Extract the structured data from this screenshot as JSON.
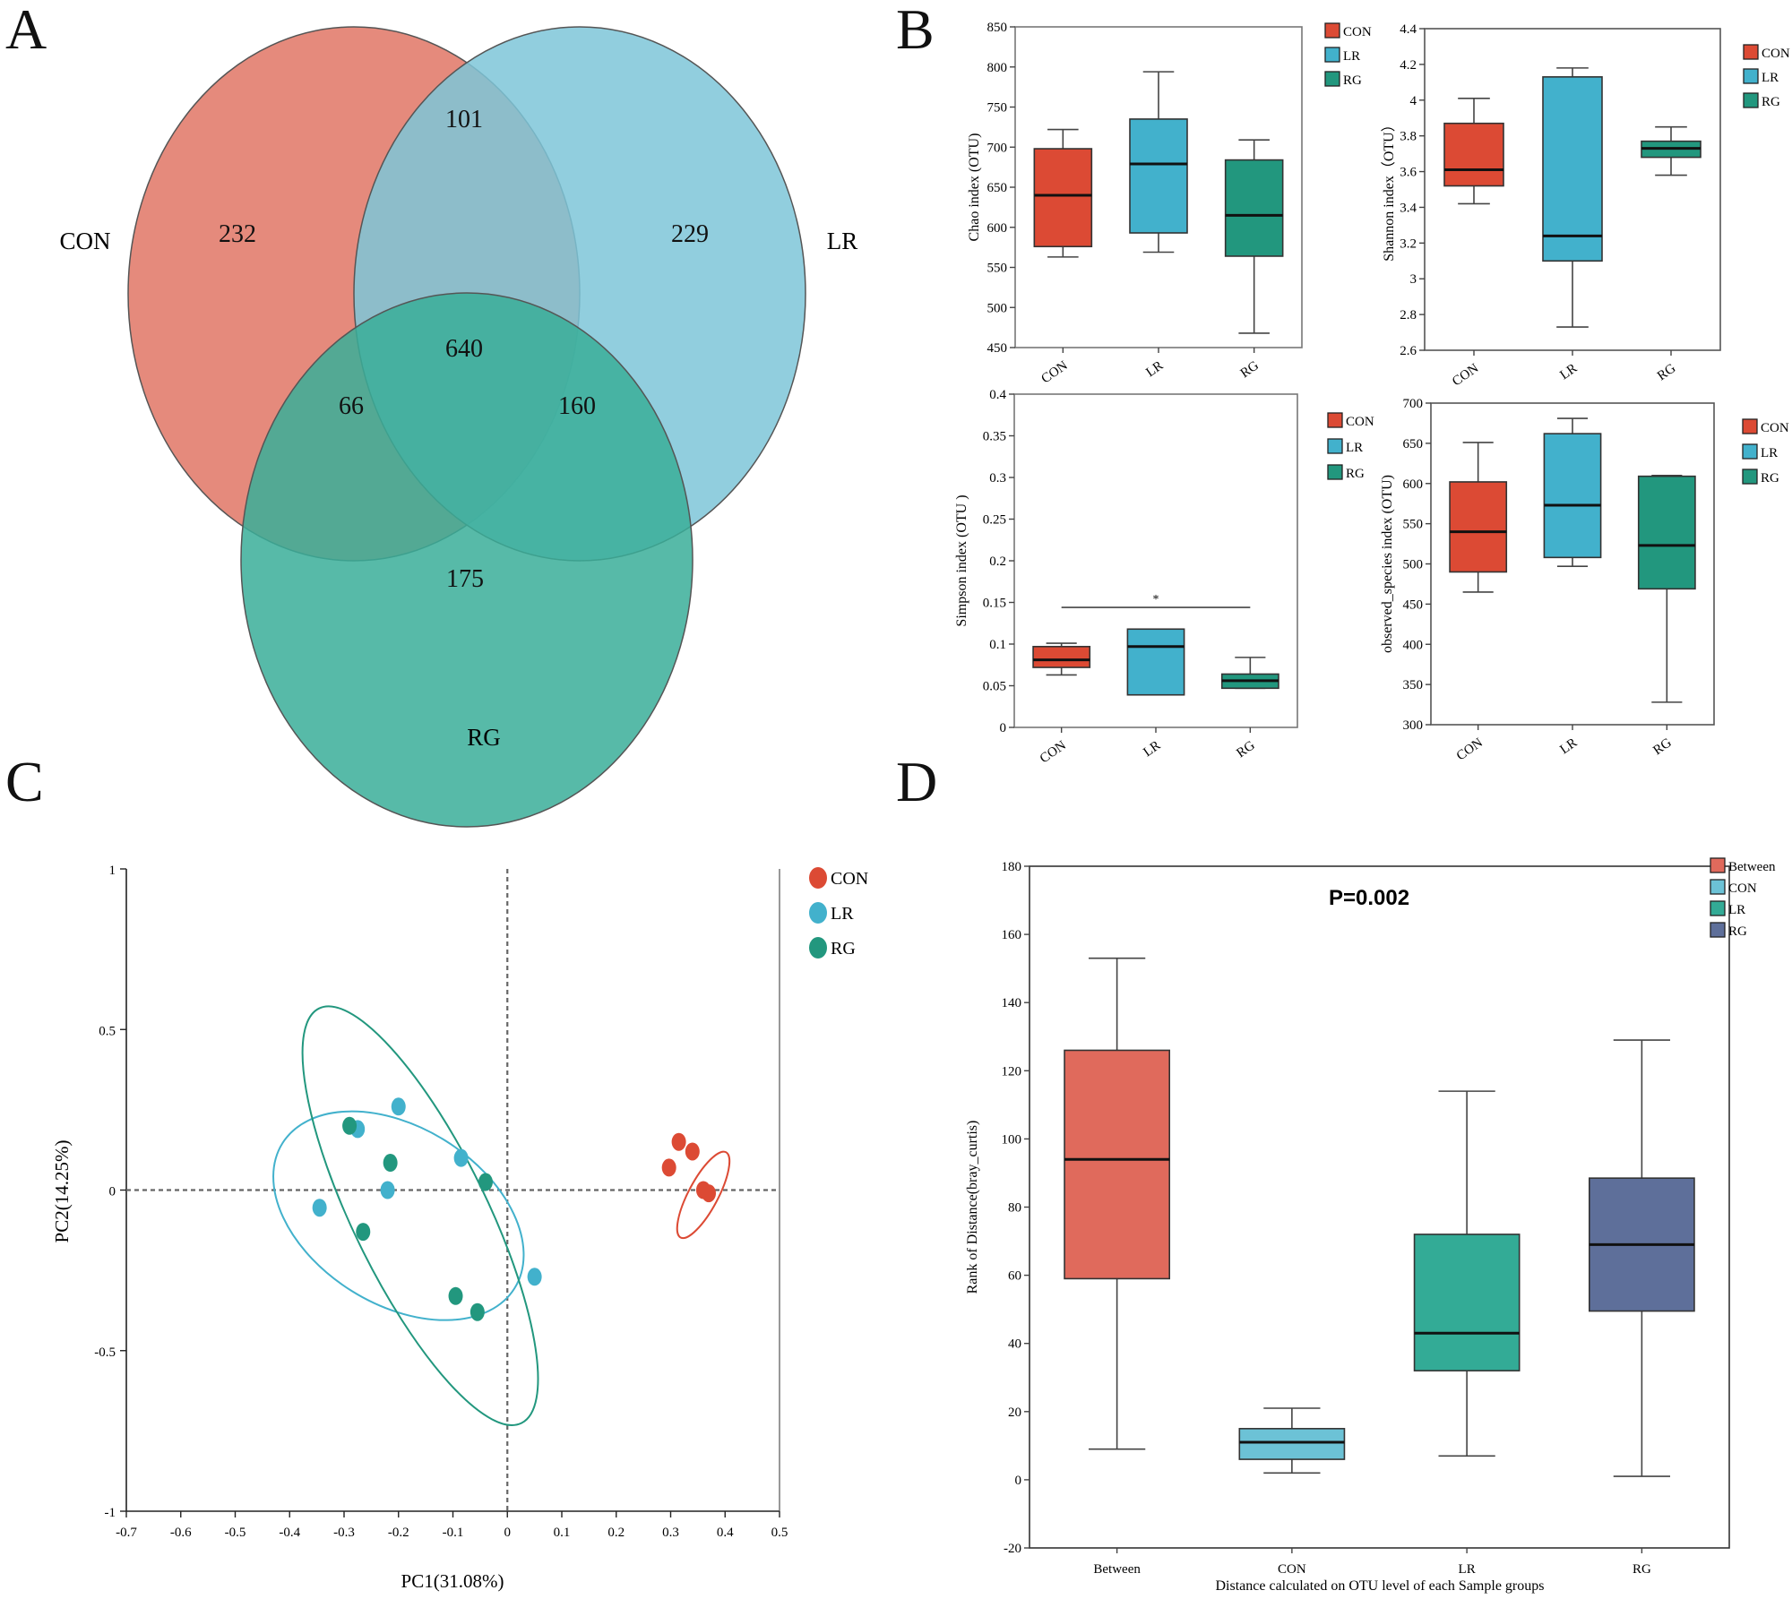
{
  "panels": {
    "A": "A",
    "B": "B",
    "C": "C",
    "D": "D"
  },
  "colors": {
    "CON": "#e07565",
    "LR": "#7ec6d8",
    "RG": "#3aae99",
    "box_CON": "#dc4a34",
    "box_LR": "#42b1cc",
    "box_RG": "#22977e",
    "D_Between": "#e06a5c",
    "D_CON": "#6cc2d6",
    "D_LR": "#33ab96",
    "D_RG": "#5e6f9a"
  },
  "chart_data": [
    {
      "id": "venn",
      "type": "venn",
      "sets": [
        "CON",
        "LR",
        "RG"
      ],
      "regions": {
        "CON_only": 232,
        "LR_only": 229,
        "RG_only": 175,
        "CON_LR": 101,
        "CON_RG": 66,
        "LR_RG": 160,
        "CON_LR_RG": 640
      }
    },
    {
      "id": "chao",
      "type": "box",
      "categories": [
        "CON",
        "LR",
        "RG"
      ],
      "ylabel": "Chao index (OTU)",
      "ylim": [
        450,
        850
      ],
      "yticks": [
        450,
        500,
        550,
        600,
        650,
        700,
        750,
        800,
        850
      ],
      "legend": [
        "CON",
        "LR",
        "RG"
      ],
      "boxes": [
        {
          "min": 563,
          "q1": 576,
          "median": 640,
          "q3": 698,
          "max": 722
        },
        {
          "min": 569,
          "q1": 593,
          "median": 679,
          "q3": 735,
          "max": 794
        },
        {
          "min": 468,
          "q1": 564,
          "median": 615,
          "q3": 684,
          "max": 709
        }
      ]
    },
    {
      "id": "shannon",
      "type": "box",
      "categories": [
        "CON",
        "LR",
        "RG"
      ],
      "ylabel": "Shannon index（OTU）",
      "ylim": [
        2.6,
        4.4
      ],
      "yticks": [
        2.6,
        2.8,
        3,
        3.2,
        3.4,
        3.6,
        3.8,
        4,
        4.2,
        4.4
      ],
      "legend": [
        "CON",
        "LR",
        "RG"
      ],
      "boxes": [
        {
          "min": 3.42,
          "q1": 3.52,
          "median": 3.61,
          "q3": 3.87,
          "max": 4.01
        },
        {
          "min": 2.73,
          "q1": 3.1,
          "median": 3.24,
          "q3": 4.13,
          "max": 4.18
        },
        {
          "min": 3.58,
          "q1": 3.68,
          "median": 3.73,
          "q3": 3.77,
          "max": 3.85
        }
      ]
    },
    {
      "id": "simpson",
      "type": "box",
      "categories": [
        "CON",
        "LR",
        "RG"
      ],
      "ylabel": "Simpson index (OTU )",
      "ylim": [
        0,
        0.4
      ],
      "yticks": [
        0,
        0.05,
        0.1,
        0.15,
        0.2,
        0.25,
        0.3,
        0.35,
        0.4
      ],
      "legend": [
        "CON",
        "LR",
        "RG"
      ],
      "significance": {
        "from": "CON",
        "to": "RG",
        "y": 0.144,
        "label": "*"
      },
      "boxes": [
        {
          "min": 0.063,
          "q1": 0.072,
          "median": 0.081,
          "q3": 0.097,
          "max": 0.101
        },
        {
          "min": 0.039,
          "q1": 0.039,
          "median": 0.097,
          "q3": 0.118,
          "max": 0.118
        },
        {
          "min": 0.047,
          "q1": 0.047,
          "median": 0.056,
          "q3": 0.064,
          "max": 0.084
        }
      ]
    },
    {
      "id": "observed",
      "type": "box",
      "categories": [
        "CON",
        "LR",
        "RG"
      ],
      "ylabel": "observed_species index (OTU)",
      "ylim": [
        300,
        700
      ],
      "yticks": [
        300,
        350,
        400,
        450,
        500,
        550,
        600,
        650,
        700
      ],
      "legend": [
        "CON",
        "LR",
        "RG"
      ],
      "boxes": [
        {
          "min": 465,
          "q1": 490,
          "median": 540,
          "q3": 602,
          "max": 651
        },
        {
          "min": 497,
          "q1": 508,
          "median": 573,
          "q3": 662,
          "max": 681
        },
        {
          "min": 328,
          "q1": 469,
          "median": 523,
          "q3": 609,
          "max": 610
        }
      ]
    },
    {
      "id": "pcoa",
      "type": "scatter",
      "xlabel": "PC1(31.08%)",
      "ylabel": "PC2(14.25%)",
      "xlim": [
        -0.7,
        0.5
      ],
      "ylim": [
        -1,
        1
      ],
      "xticks": [
        -0.7,
        -0.6,
        -0.5,
        -0.4,
        -0.3,
        -0.2,
        -0.1,
        0,
        0.1,
        0.2,
        0.3,
        0.4,
        0.5
      ],
      "yticks": [
        -1,
        -0.5,
        0,
        0.5,
        1
      ],
      "legend": [
        "CON",
        "LR",
        "RG"
      ],
      "legend_position": "top-right",
      "series": [
        {
          "name": "CON",
          "points": [
            [
              0.315,
              0.15
            ],
            [
              0.34,
              0.12
            ],
            [
              0.297,
              0.07
            ],
            [
              0.36,
              0.0
            ],
            [
              0.37,
              -0.01
            ]
          ],
          "ellipse": {
            "cx": 0.36,
            "cy": -0.015,
            "rx": 0.18,
            "ry": 0.055,
            "angle_deg": 62
          }
        },
        {
          "name": "LR",
          "points": [
            [
              -0.2,
              0.26
            ],
            [
              -0.275,
              0.19
            ],
            [
              -0.085,
              0.1
            ],
            [
              -0.22,
              0.0
            ],
            [
              -0.345,
              -0.055
            ],
            [
              0.05,
              -0.27
            ]
          ],
          "ellipse": {
            "cx": -0.2,
            "cy": -0.08,
            "rx": 0.51,
            "ry": 0.33,
            "angle_deg": -32
          }
        },
        {
          "name": "RG",
          "points": [
            [
              -0.29,
              0.2
            ],
            [
              -0.215,
              0.085
            ],
            [
              -0.04,
              0.025
            ],
            [
              -0.265,
              -0.13
            ],
            [
              -0.095,
              -0.33
            ],
            [
              -0.055,
              -0.38
            ]
          ],
          "ellipse": {
            "cx": -0.16,
            "cy": -0.08,
            "rx": 0.86,
            "ry": 0.25,
            "angle_deg": -64
          }
        }
      ]
    },
    {
      "id": "anosim",
      "type": "box",
      "categories": [
        "Between",
        "CON",
        "LR",
        "RG"
      ],
      "xlabel": "Distance calculated on OTU level of each Sample groups",
      "ylabel": "Rank of Distance(bray_curtis)",
      "ylim": [
        -20,
        180
      ],
      "yticks": [
        -20,
        0,
        20,
        40,
        60,
        80,
        100,
        120,
        140,
        160,
        180
      ],
      "annotation": "P=0.002",
      "legend": [
        "Between",
        "CON",
        "LR",
        "RG"
      ],
      "boxes": [
        {
          "min": 9,
          "q1": 59,
          "median": 94,
          "q3": 126,
          "max": 153
        },
        {
          "min": 2,
          "q1": 6,
          "median": 11,
          "q3": 15,
          "max": 21
        },
        {
          "min": 7,
          "q1": 32,
          "median": 43,
          "q3": 72,
          "max": 114
        },
        {
          "min": 1,
          "q1": 49.5,
          "median": 69,
          "q3": 88.5,
          "max": 129
        }
      ]
    }
  ]
}
